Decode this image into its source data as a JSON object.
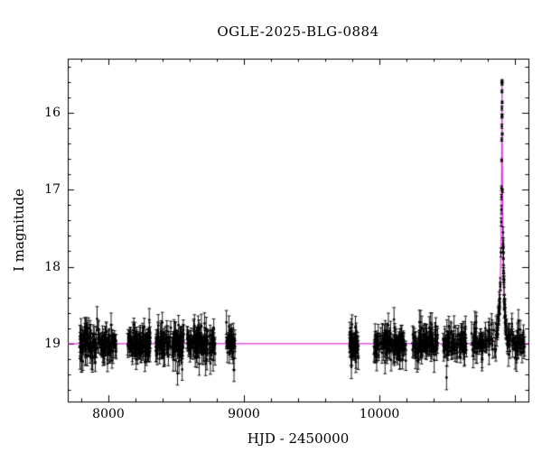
{
  "page": {
    "background": "#ffffff"
  },
  "chart_data": {
    "type": "scatter",
    "title": "OGLE-2025-BLG-0884",
    "xlabel": "HJD - 2450000",
    "ylabel": "I magnitude",
    "xlim": [
      7700,
      11100
    ],
    "ylim": [
      19.75,
      15.3
    ],
    "y_axis_inverted": true,
    "x_major_ticks": [
      8000,
      9000,
      10000,
      11000
    ],
    "x_labeled_ticks": [
      "8000",
      "9000",
      "10000"
    ],
    "x_labeled_tick_values": [
      8000,
      9000,
      10000
    ],
    "x_minor_step": 200,
    "y_major_ticks": [
      16,
      17,
      18,
      19
    ],
    "y_labeled_ticks": [
      "16",
      "17",
      "18",
      "19"
    ],
    "y_labeled_tick_values": [
      16,
      17,
      18,
      19
    ],
    "y_minor_step": 0.2,
    "grid": false,
    "legend": null,
    "background": "#ffffff",
    "frame_color": "#000000",
    "point_color": "#000000",
    "model_color": "#dd33dd",
    "seed": 20250884,
    "model": {
      "type": "paczynski",
      "t0": 10905,
      "tE": 25,
      "u0": 0.042,
      "baseline_mag": 19.0,
      "peak_mag": 15.56
    },
    "seasons": [
      {
        "x0": 7790,
        "x1": 8060,
        "n": 160
      },
      {
        "x0": 8140,
        "x1": 8310,
        "n": 120
      },
      {
        "x0": 8350,
        "x1": 8560,
        "n": 140
      },
      {
        "x0": 8580,
        "x1": 8790,
        "n": 130
      },
      {
        "x0": 8870,
        "x1": 8935,
        "n": 40
      },
      {
        "x0": 9780,
        "x1": 9845,
        "n": 55
      },
      {
        "x0": 9960,
        "x1": 10200,
        "n": 130
      },
      {
        "x0": 10240,
        "x1": 10430,
        "n": 110
      },
      {
        "x0": 10470,
        "x1": 10645,
        "n": 90
      },
      {
        "x0": 10680,
        "x1": 11080,
        "n": 150
      },
      {
        "x0": 10880,
        "x1": 10945,
        "n": 50
      }
    ]
  }
}
